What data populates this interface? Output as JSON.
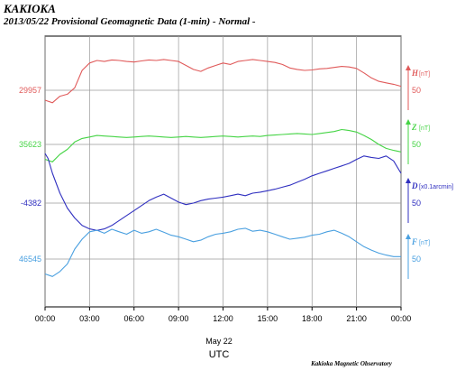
{
  "header": {
    "station": "KAKIOKA",
    "subtitle": "2013/05/22  Provisional Geomagnetic Data (1-min)  - Normal -"
  },
  "footer": {
    "date": "May 22",
    "timezone": "UTC",
    "credit": "Kakioka Magnetic Observatory"
  },
  "chart_data": {
    "type": "line",
    "x_unit": "hour (UTC)",
    "xlim": [
      0,
      24
    ],
    "x_ticks": [
      "00:00",
      "03:00",
      "06:00",
      "09:00",
      "12:00",
      "15:00",
      "18:00",
      "21:00",
      "00:00"
    ],
    "grid": true,
    "series": [
      {
        "name": "H",
        "unit": "[nT]",
        "base_label": "29957",
        "scale_label": "50",
        "color": "#e05a5a",
        "x": [
          0,
          0.5,
          1,
          1.5,
          2,
          2.5,
          3,
          3.5,
          4,
          4.5,
          5,
          5.5,
          6,
          6.5,
          7,
          7.5,
          8,
          8.5,
          9,
          9.5,
          10,
          10.5,
          11,
          11.5,
          12,
          12.5,
          13,
          13.5,
          14,
          14.5,
          15,
          15.5,
          16,
          16.5,
          17,
          17.5,
          18,
          18.5,
          19,
          19.5,
          20,
          20.5,
          21,
          21.5,
          22,
          22.5,
          23,
          23.5,
          24
        ],
        "y": [
          -20,
          -25,
          -12,
          -8,
          5,
          40,
          55,
          60,
          58,
          61,
          60,
          58,
          57,
          59,
          61,
          60,
          62,
          60,
          58,
          50,
          42,
          38,
          45,
          50,
          55,
          52,
          58,
          60,
          62,
          60,
          58,
          56,
          52,
          45,
          42,
          40,
          41,
          43,
          44,
          46,
          48,
          47,
          44,
          35,
          25,
          18,
          15,
          12,
          8
        ]
      },
      {
        "name": "Z",
        "unit": "[nT]",
        "base_label": "35623",
        "scale_label": "50",
        "color": "#45d445",
        "x": [
          0,
          0.5,
          1,
          1.5,
          2,
          2.5,
          3,
          3.5,
          4,
          4.5,
          5,
          5.5,
          6,
          6.5,
          7,
          7.5,
          8,
          8.5,
          9,
          9.5,
          10,
          10.5,
          11,
          11.5,
          12,
          12.5,
          13,
          13.5,
          14,
          14.5,
          15,
          15.5,
          16,
          16.5,
          17,
          17.5,
          18,
          18.5,
          19,
          19.5,
          20,
          20.5,
          21,
          21.5,
          22,
          22.5,
          23,
          23.5,
          24
        ],
        "y": [
          -30,
          -35,
          -20,
          -10,
          5,
          12,
          15,
          18,
          17,
          16,
          15,
          14,
          15,
          16,
          17,
          16,
          15,
          14,
          15,
          16,
          15,
          14,
          15,
          16,
          17,
          16,
          15,
          16,
          17,
          16,
          18,
          19,
          20,
          21,
          22,
          21,
          20,
          22,
          24,
          26,
          30,
          28,
          25,
          18,
          10,
          0,
          -8,
          -12,
          -15
        ]
      },
      {
        "name": "D",
        "unit": "[x0.1arcmin]",
        "base_label": "-4382",
        "scale_label": "50",
        "color": "#3030c0",
        "x": [
          0,
          0.2,
          0.5,
          1,
          1.5,
          2,
          2.5,
          3,
          3.5,
          4,
          4.5,
          5,
          5.5,
          6,
          6.5,
          7,
          7.5,
          8,
          8.5,
          9,
          9.5,
          10,
          10.5,
          11,
          11.5,
          12,
          12.5,
          13,
          13.5,
          14,
          14.5,
          15,
          15.5,
          16,
          16.5,
          17,
          17.5,
          18,
          18.5,
          19,
          19.5,
          20,
          20.5,
          21,
          21.5,
          22,
          22.5,
          23,
          23.5,
          24
        ],
        "y": [
          100,
          90,
          60,
          20,
          -10,
          -30,
          -45,
          -52,
          -55,
          -52,
          -45,
          -35,
          -25,
          -15,
          -5,
          5,
          12,
          18,
          10,
          2,
          -3,
          0,
          5,
          8,
          10,
          12,
          15,
          18,
          15,
          20,
          22,
          25,
          28,
          32,
          36,
          42,
          48,
          55,
          60,
          65,
          70,
          75,
          80,
          88,
          95,
          92,
          90,
          95,
          85,
          60
        ]
      },
      {
        "name": "F",
        "unit": "[nT]",
        "base_label": "46545",
        "scale_label": "50",
        "color": "#4aa0e0",
        "x": [
          0,
          0.5,
          1,
          1.5,
          2,
          2.5,
          3,
          3.5,
          4,
          4.5,
          5,
          5.5,
          6,
          6.5,
          7,
          7.5,
          8,
          8.5,
          9,
          9.5,
          10,
          10.5,
          11,
          11.5,
          12,
          12.5,
          13,
          13.5,
          14,
          14.5,
          15,
          15.5,
          16,
          16.5,
          17,
          17.5,
          18,
          18.5,
          19,
          19.5,
          20,
          20.5,
          21,
          21.5,
          22,
          22.5,
          23,
          23.5,
          24
        ],
        "y": [
          -30,
          -35,
          -25,
          -10,
          20,
          40,
          55,
          58,
          52,
          60,
          55,
          50,
          58,
          52,
          55,
          60,
          54,
          48,
          45,
          40,
          35,
          38,
          45,
          50,
          52,
          55,
          60,
          62,
          56,
          58,
          55,
          50,
          45,
          40,
          42,
          44,
          48,
          50,
          55,
          58,
          52,
          45,
          35,
          25,
          18,
          12,
          8,
          5,
          5
        ]
      }
    ]
  }
}
